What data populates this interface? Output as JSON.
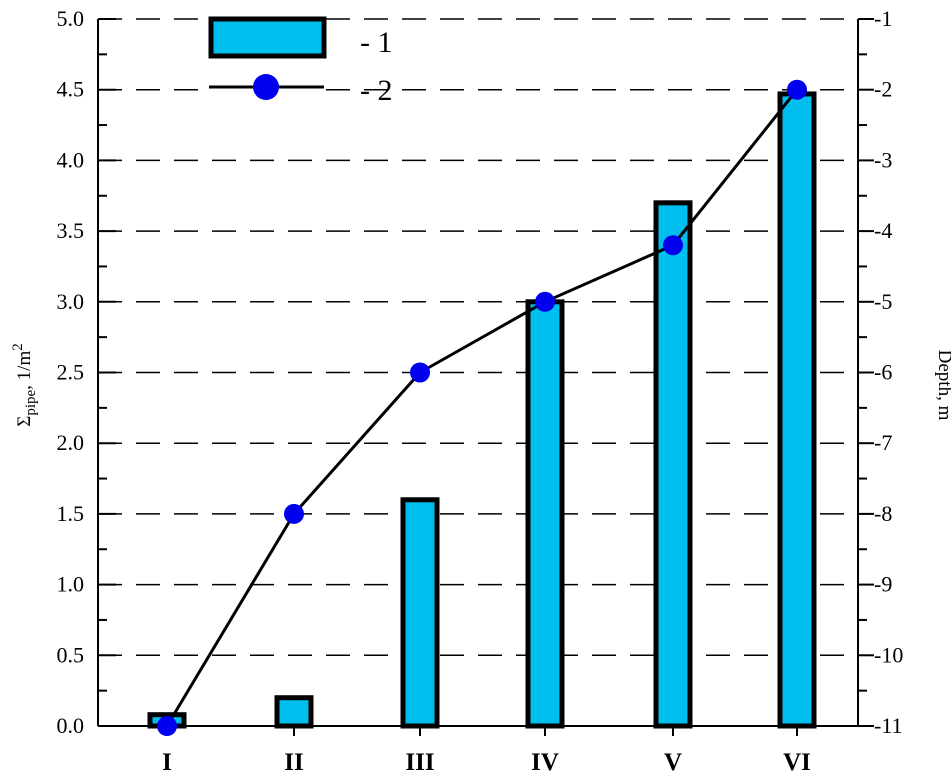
{
  "chart_data": {
    "type": "bar",
    "categories": [
      "I",
      "II",
      "III",
      "IV",
      "V",
      "VI"
    ],
    "series": [
      {
        "name": "- 1",
        "type": "bar",
        "axis": "left",
        "values": [
          0.08,
          0.2,
          1.6,
          3.0,
          3.7,
          4.47
        ],
        "color": "#00bfef"
      },
      {
        "name": "- 2",
        "type": "line",
        "axis": "right",
        "values": [
          -11,
          -8,
          -6,
          -5,
          -4.2,
          -2
        ],
        "color": "#0000ee"
      }
    ],
    "ylabel": {
      "base": "Σ",
      "sub": "pipe",
      "rest": ", 1/m",
      "sup": "2"
    },
    "y2label": "Depth, m",
    "ylim": [
      0,
      5.0
    ],
    "y2lim": [
      -11,
      -1
    ],
    "yticks": [
      "0.0",
      "0.5",
      "1.0",
      "1.5",
      "2.0",
      "2.5",
      "3.0",
      "3.5",
      "4.0",
      "4.5",
      "5.0"
    ],
    "y2ticks": [
      "-11",
      "-10",
      "-9",
      "-8",
      "-7",
      "-6",
      "-5",
      "-4",
      "-3",
      "-2",
      "-1"
    ],
    "grid": "horizontal dashed",
    "legend_position": "top-left"
  }
}
